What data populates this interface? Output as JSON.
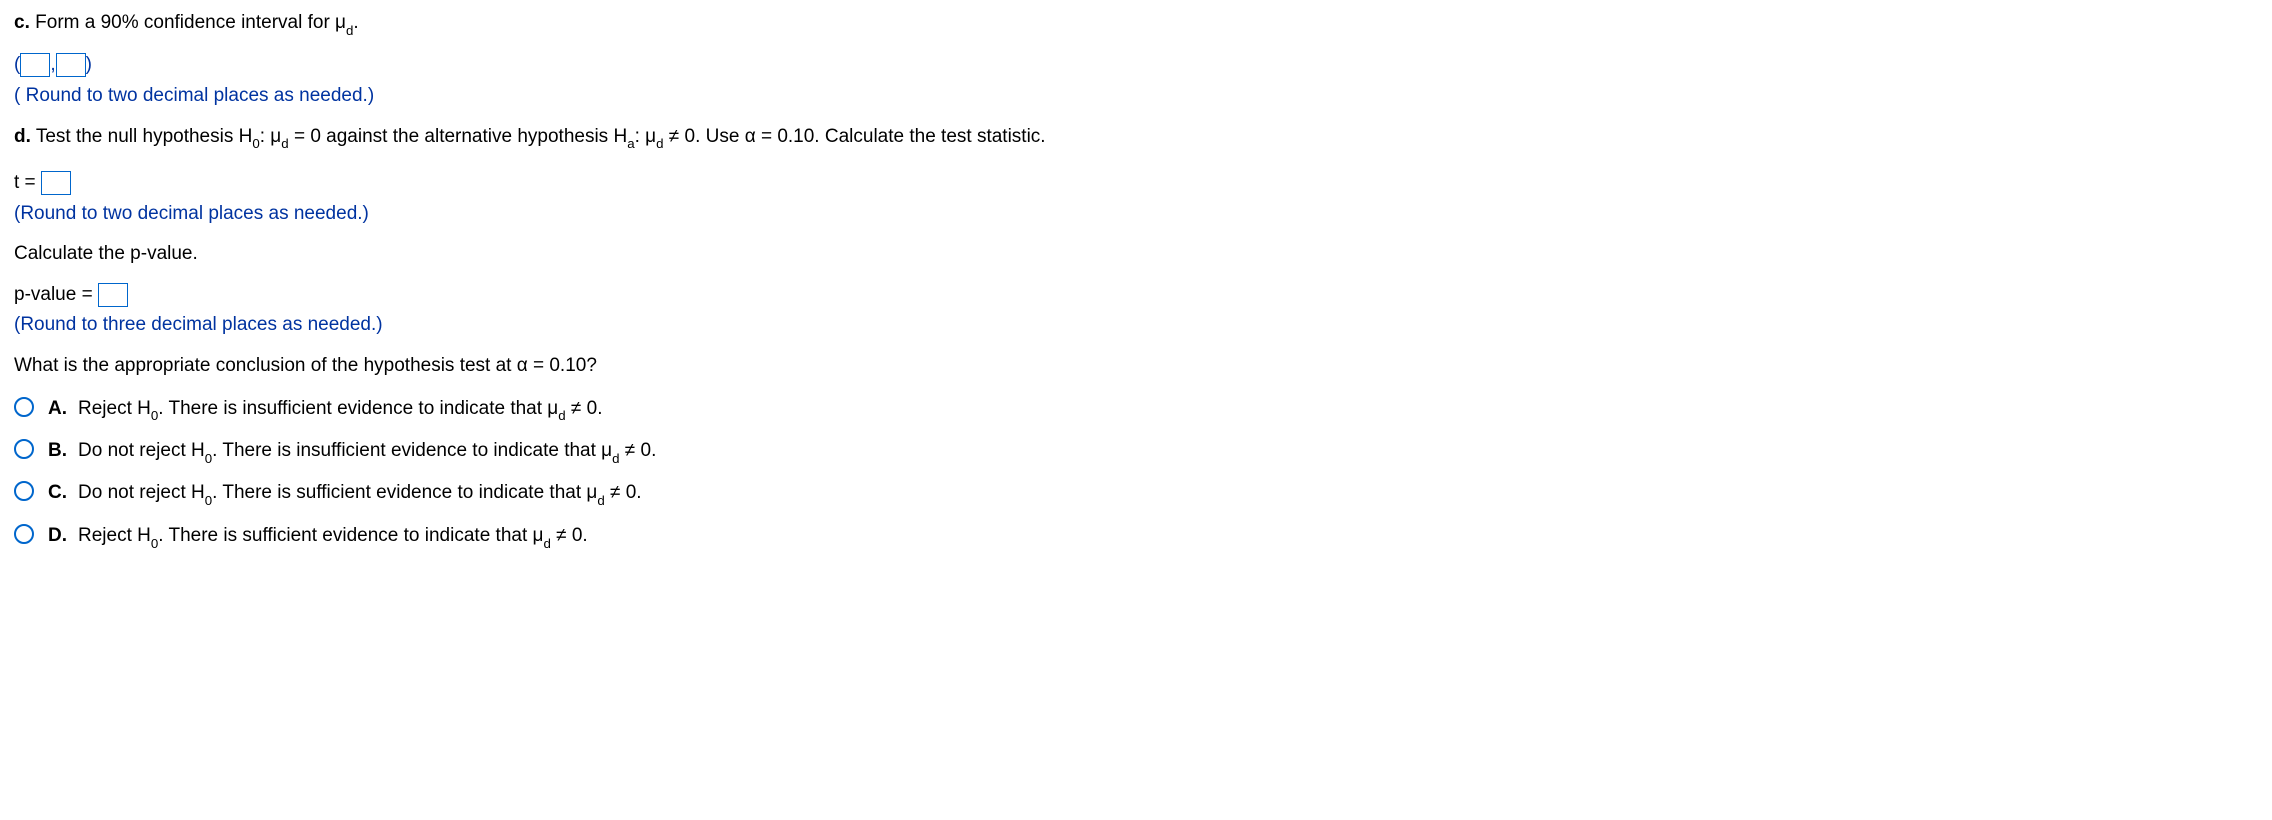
{
  "partC": {
    "label": "c.",
    "text1": "Form a 90% confidence interval for μ",
    "sub1": "d",
    "text2": ".",
    "round": "( Round to two decimal places as needed.)"
  },
  "partD": {
    "label": "d.",
    "t1": "Test the null hypothesis H",
    "s1": "0",
    "t2": ": μ",
    "s2": "d",
    "t3": " = 0 against the alternative hypothesis H",
    "s3": "a",
    "t4": ": μ",
    "s4": "d",
    "t5": " ≠ 0. Use α = 0.10. Calculate the test statistic."
  },
  "tstat": {
    "label": "t =",
    "round": "(Round to two decimal places as needed.)"
  },
  "pval": {
    "intro": "Calculate the p-value.",
    "label": "p-value =",
    "round": "(Round to three decimal places as needed.)"
  },
  "conclusion": {
    "q": "What is the appropriate conclusion of the hypothesis test at α = 0.10?"
  },
  "options": {
    "A": {
      "label": "A.",
      "t1": "Reject H",
      "s1": "0",
      "t2": ". There is insufficient evidence to indicate that μ",
      "s2": "d",
      "t3": " ≠ 0."
    },
    "B": {
      "label": "B.",
      "t1": "Do not reject H",
      "s1": "0",
      "t2": ". There is insufficient evidence to indicate that μ",
      "s2": "d",
      "t3": " ≠ 0."
    },
    "C": {
      "label": "C.",
      "t1": "Do not reject H",
      "s1": "0",
      "t2": ". There is sufficient evidence to indicate that μ",
      "s2": "d",
      "t3": " ≠ 0."
    },
    "D": {
      "label": "D.",
      "t1": "Reject H",
      "s1": "0",
      "t2": ". There is sufficient evidence to indicate that μ",
      "s2": "d",
      "t3": " ≠ 0."
    }
  },
  "punct": {
    "open": "(",
    "comma": ",",
    "close": ")"
  }
}
